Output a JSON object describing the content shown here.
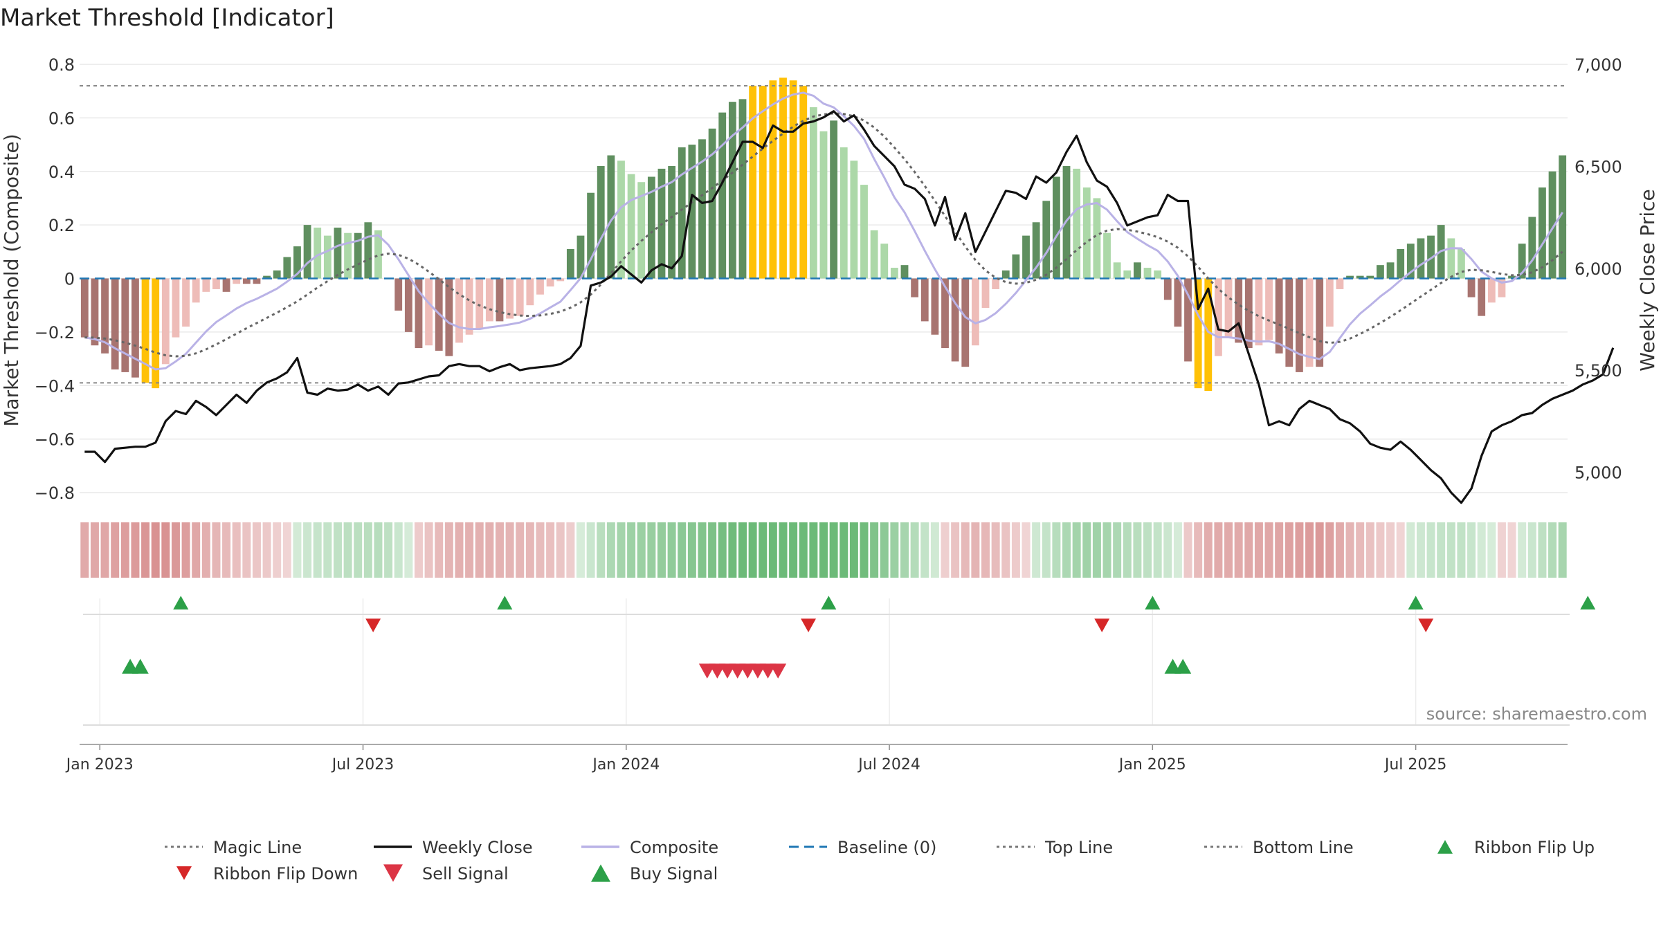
{
  "title": "Market Threshold [Indicator]",
  "source_note": "source: sharemaestro.com",
  "colors": {
    "buy_signal": "#2ca048",
    "sell_signal": "#dc3545",
    "ribbon_flip_up": "#2ca048",
    "ribbon_flip_down": "#d62728",
    "composite": "#b9b2e6",
    "weekly_close": "#111111",
    "magic_line": "#666666",
    "baseline": "#1f77b4",
    "top_bottom": "#888888",
    "bar_extreme": "#ffc107",
    "bar_pos_strong": "#5f8f5f",
    "bar_pos_weak": "#acd8a8",
    "bar_neg_strong": "#a87470",
    "bar_neg_weak": "#eebcb8"
  },
  "legend": [
    {
      "label": "Magic Line",
      "icon": "dotted-line"
    },
    {
      "label": "Weekly Close",
      "icon": "solid-line"
    },
    {
      "label": "Composite",
      "icon": "light-line"
    },
    {
      "label": "Baseline (0)",
      "icon": "dashed-line"
    },
    {
      "label": "Top Line",
      "icon": "dotted-line"
    },
    {
      "label": "Bottom Line",
      "icon": "dotted-line"
    },
    {
      "label": "Ribbon Flip Up",
      "icon": "triangle-up"
    },
    {
      "label": "Ribbon Flip Down",
      "icon": "triangle-down"
    },
    {
      "label": "Sell Signal",
      "icon": "triangle-down"
    },
    {
      "label": "Buy Signal",
      "icon": "triangle-up"
    }
  ],
  "chart_data": {
    "type": "bar",
    "x_labels": [
      "Jan 2023",
      "Jul 2023",
      "Jan 2024",
      "Jul 2024",
      "Jan 2025",
      "Jul 2025"
    ],
    "x_label_weeks": [
      0,
      26,
      52,
      78,
      104,
      130
    ],
    "ylabel": "Market Threshold (Composite)",
    "y2label": "Weekly Close Price",
    "ylim": [
      -0.8,
      0.8
    ],
    "yticks": [
      0.8,
      0.6,
      0.4,
      0.2,
      0,
      -0.2,
      -0.4,
      -0.6,
      -0.8
    ],
    "ytick_labels": [
      "0.8",
      "0.6",
      "0.4",
      "0.2",
      "0",
      "−0.2",
      "−0.4",
      "−0.6",
      "−0.8"
    ],
    "y2lim": [
      4900,
      7000
    ],
    "y2ticks": [
      7000,
      6500,
      6000,
      5500,
      5000
    ],
    "y2tick_labels": [
      "7,000",
      "6,500",
      "6,000",
      "5,500",
      "5,000"
    ],
    "top_line": 0.72,
    "bottom_line": -0.39,
    "baseline": 0,
    "grid": true,
    "legend_position": "bottom",
    "start_date": "Dec 2022",
    "composite_bars": [
      -0.22,
      -0.25,
      -0.28,
      -0.34,
      -0.35,
      -0.37,
      -0.39,
      -0.41,
      -0.32,
      -0.22,
      -0.18,
      -0.09,
      -0.05,
      -0.04,
      -0.05,
      -0.02,
      -0.02,
      -0.02,
      0.01,
      0.03,
      0.08,
      0.12,
      0.2,
      0.19,
      0.16,
      0.19,
      0.17,
      0.17,
      0.21,
      0.18,
      0,
      -0.12,
      -0.2,
      -0.26,
      -0.25,
      -0.27,
      -0.29,
      -0.24,
      -0.21,
      -0.19,
      -0.16,
      -0.16,
      -0.15,
      -0.14,
      -0.1,
      -0.06,
      -0.03,
      -0.01,
      0.11,
      0.16,
      0.32,
      0.42,
      0.46,
      0.44,
      0.39,
      0.36,
      0.38,
      0.41,
      0.42,
      0.49,
      0.5,
      0.52,
      0.56,
      0.62,
      0.66,
      0.67,
      0.72,
      0.72,
      0.74,
      0.75,
      0.74,
      0.72,
      0.64,
      0.55,
      0.59,
      0.49,
      0.44,
      0.35,
      0.18,
      0.13,
      0.04,
      0.05,
      -0.07,
      -0.16,
      -0.21,
      -0.26,
      -0.31,
      -0.33,
      -0.25,
      -0.11,
      -0.04,
      0.03,
      0.09,
      0.16,
      0.21,
      0.29,
      0.38,
      0.42,
      0.41,
      0.34,
      0.3,
      0.17,
      0.06,
      0.03,
      0.06,
      0.04,
      0.03,
      -0.08,
      -0.18,
      -0.31,
      -0.41,
      -0.42,
      -0.29,
      -0.22,
      -0.24,
      -0.26,
      -0.25,
      -0.23,
      -0.28,
      -0.33,
      -0.35,
      -0.33,
      -0.33,
      -0.18,
      -0.04,
      0.01,
      0.01,
      0.01,
      0.05,
      0.06,
      0.11,
      0.13,
      0.15,
      0.16,
      0.2,
      0.15,
      0.11,
      -0.07,
      -0.14,
      -0.09,
      -0.07,
      0.01,
      0.13,
      0.23,
      0.34,
      0.4,
      0.46
    ],
    "weekly_close": [
      5100,
      5100,
      5050,
      5115,
      5120,
      5125,
      5125,
      5145,
      5250,
      5300,
      5285,
      5350,
      5320,
      5280,
      5330,
      5380,
      5340,
      5400,
      5440,
      5460,
      5490,
      5560,
      5390,
      5380,
      5410,
      5400,
      5405,
      5430,
      5400,
      5420,
      5380,
      5435,
      5440,
      5455,
      5470,
      5475,
      5520,
      5530,
      5520,
      5520,
      5495,
      5515,
      5530,
      5500,
      5510,
      5515,
      5520,
      5530,
      5560,
      5620,
      5915,
      5930,
      5960,
      6010,
      5970,
      5930,
      5990,
      6020,
      6000,
      6060,
      6360,
      6320,
      6330,
      6420,
      6520,
      6620,
      6620,
      6590,
      6700,
      6670,
      6670,
      6710,
      6720,
      6740,
      6770,
      6720,
      6750,
      6680,
      6600,
      6550,
      6500,
      6410,
      6390,
      6340,
      6210,
      6350,
      6140,
      6270,
      6080,
      6180,
      6280,
      6380,
      6370,
      6340,
      6450,
      6420,
      6470,
      6570,
      6650,
      6520,
      6430,
      6400,
      6320,
      6210,
      6230,
      6250,
      6260,
      6360,
      6330,
      6330,
      5800,
      5900,
      5700,
      5690,
      5730,
      5580,
      5430,
      5230,
      5250,
      5230,
      5310,
      5350,
      5330,
      5310,
      5260,
      5240,
      5200,
      5140,
      5120,
      5110,
      5150,
      5110,
      5060,
      5010,
      4970,
      4900,
      4850,
      4920,
      5080,
      5200,
      5230,
      5250,
      5280,
      5290,
      5330,
      5360,
      5380,
      5400,
      5430,
      5450,
      5480,
      5610
    ]
  }
}
